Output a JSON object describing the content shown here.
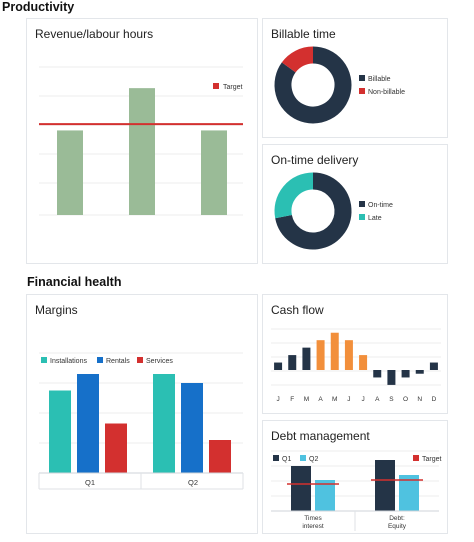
{
  "sections": {
    "productivity": "Productivity",
    "financial": "Financial health"
  },
  "colors": {
    "green": "#9abb97",
    "red": "#d3302f",
    "navy": "#243447",
    "teal": "#2bbfb3",
    "blue": "#1670c9",
    "orange": "#f28f3b",
    "light_blue": "#4fc2e0"
  },
  "chart_data": [
    {
      "id": "revenue",
      "type": "bar",
      "title": "Revenue/labour hours",
      "categories": [
        "",
        "",
        ""
      ],
      "values": [
        4,
        6,
        4
      ],
      "target": 4.3,
      "target_label": "Target",
      "ylim": [
        0,
        7
      ],
      "legend": "top-right",
      "grid": true
    },
    {
      "id": "billable",
      "type": "pie",
      "title": "Billable time",
      "donut": true,
      "labels": [
        "Billable",
        "Non-billable"
      ],
      "values": [
        85,
        15
      ],
      "legend": "right"
    },
    {
      "id": "ontime",
      "type": "pie",
      "title": "On-time delivery",
      "donut": true,
      "labels": [
        "On-time",
        "Late"
      ],
      "values": [
        72,
        28
      ],
      "legend": "right"
    },
    {
      "id": "margins",
      "type": "bar",
      "title": "Margins",
      "categories": [
        "Q1",
        "Q2"
      ],
      "series": [
        {
          "name": "Installations",
          "values": [
            5.5,
            6.6
          ]
        },
        {
          "name": "Rentals",
          "values": [
            6.6,
            6.0
          ]
        },
        {
          "name": "Services",
          "values": [
            3.3,
            2.2
          ]
        }
      ],
      "ylim": [
        0,
        8
      ],
      "legend": "top-left",
      "grid": true
    },
    {
      "id": "cashflow",
      "type": "bar",
      "title": "Cash flow",
      "categories": [
        "J",
        "F",
        "M",
        "A",
        "M",
        "J",
        "J",
        "A",
        "S",
        "O",
        "N",
        "D"
      ],
      "values": [
        1,
        2,
        3,
        4,
        5,
        4,
        2,
        -1,
        -2,
        -1,
        -0.5,
        1
      ],
      "ylim": [
        -2.5,
        5.5
      ],
      "grid": true
    },
    {
      "id": "debt",
      "type": "bar",
      "title": "Debt management",
      "categories": [
        "Times interest",
        "Debt: Equity"
      ],
      "series": [
        {
          "name": "Q1",
          "values": [
            4.5,
            5.1
          ]
        },
        {
          "name": "Q2",
          "values": [
            3.1,
            3.6
          ]
        }
      ],
      "targets": [
        2.7,
        3.1
      ],
      "target_label": "Target",
      "ylim": [
        0,
        6
      ],
      "legend": "top",
      "grid": true
    }
  ]
}
